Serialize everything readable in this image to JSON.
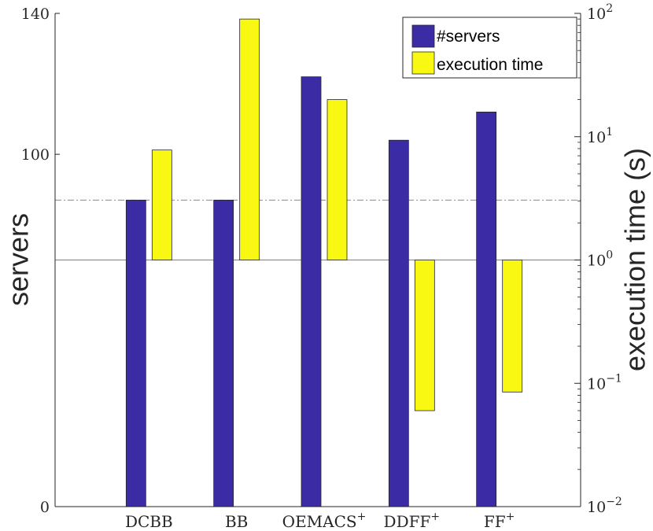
{
  "chart_data": {
    "type": "bar",
    "categories": [
      "DCBB",
      "BB",
      "OEMACS",
      "DDFF",
      "FF"
    ],
    "category_superscripts": [
      "",
      "",
      "+",
      "+",
      "+"
    ],
    "series": [
      {
        "name": "#servers",
        "axis": "left",
        "values": [
          87,
          87,
          122,
          104,
          112
        ],
        "color": "#3b2ca6"
      },
      {
        "name": "execution time",
        "axis": "right",
        "scale": "log",
        "values": [
          7.8,
          90,
          20,
          0.06,
          0.085
        ],
        "base": 1,
        "color": "#f8f812"
      }
    ],
    "ylabel": "servers",
    "ylabel_right": "execution time (s)",
    "ylim": [
      0,
      140
    ],
    "ylim_right": [
      0.01,
      100
    ],
    "left_ticks": [
      "0",
      "100",
      "140"
    ],
    "right_tick_bases": [
      "10",
      "10",
      "10",
      "10",
      "10"
    ],
    "right_tick_exponents": [
      "−2",
      "−1",
      "0",
      "1",
      "2"
    ],
    "right_tick_values": [
      0.01,
      0.1,
      1,
      10,
      100
    ],
    "reference_lines": [
      {
        "axis": "left",
        "value": 87,
        "style": "dash-dot"
      },
      {
        "axis": "right",
        "value": 1,
        "style": "solid"
      }
    ],
    "legend_position": "top-right",
    "grid": false
  }
}
